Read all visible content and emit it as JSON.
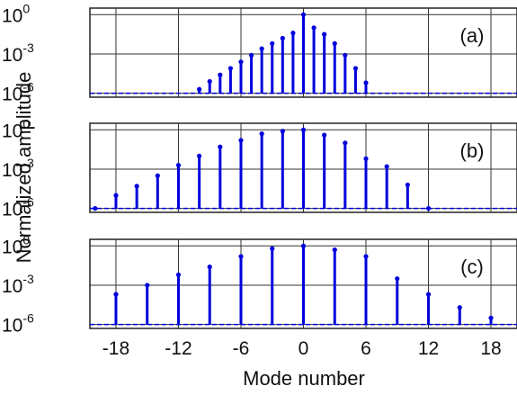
{
  "chart_data": [
    {
      "type": "stem",
      "panel_label": "(a)",
      "x": [
        -10,
        -9,
        -8,
        -7,
        -6,
        -5,
        -4,
        -3,
        -2,
        -1,
        0,
        1,
        2,
        3,
        4,
        5,
        6
      ],
      "y_log10": [
        -5.7,
        -5.1,
        -4.6,
        -4.1,
        -3.6,
        -3.1,
        -2.6,
        -2.2,
        -1.8,
        -1.4,
        0.0,
        -1.0,
        -1.5,
        -2.2,
        -3.1,
        -4.1,
        -5.2
      ],
      "ylim_log10": [
        -6.3,
        0.5
      ],
      "xlim": [
        -20.5,
        20.5
      ],
      "color": "#0000dd"
    },
    {
      "type": "stem",
      "panel_label": "(b)",
      "x": [
        -20,
        -18,
        -16,
        -14,
        -12,
        -10,
        -8,
        -6,
        -4,
        -2,
        0,
        2,
        4,
        6,
        8,
        10,
        12
      ],
      "y_log10": [
        -6.0,
        -5.0,
        -4.3,
        -3.5,
        -2.7,
        -2.0,
        -1.3,
        -0.8,
        -0.3,
        -0.1,
        0.0,
        -0.4,
        -1.0,
        -2.2,
        -2.8,
        -4.2,
        -6.0
      ],
      "ylim_log10": [
        -6.3,
        0.5
      ],
      "xlim": [
        -20.5,
        20.5
      ],
      "color": "#0000dd"
    },
    {
      "type": "stem",
      "panel_label": "(c)",
      "x": [
        -18,
        -15,
        -12,
        -9,
        -6,
        -3,
        0,
        3,
        6,
        9,
        12,
        15,
        18
      ],
      "y_log10": [
        -3.7,
        -3.0,
        -2.2,
        -1.6,
        -0.8,
        -0.2,
        0.0,
        -0.3,
        -0.8,
        -2.5,
        -3.7,
        -4.7,
        -5.5
      ],
      "ylim_log10": [
        -6.3,
        0.5
      ],
      "xlim": [
        -20.5,
        20.5
      ],
      "color": "#0000dd"
    }
  ],
  "axes": {
    "xlabel": "Mode number",
    "ylabel": "Normalized amplitude",
    "x_ticks": [
      "-18",
      "-12",
      "-6",
      "0",
      "6",
      "12",
      "18"
    ],
    "x_tick_values": [
      -18,
      -12,
      -6,
      0,
      6,
      12,
      18
    ],
    "y_tick_base": "10",
    "y_tick_exponents": [
      "0",
      "-3",
      "-6"
    ],
    "y_tick_values_log10": [
      0,
      -3,
      -6
    ],
    "grid": true,
    "y_scale": "log"
  }
}
